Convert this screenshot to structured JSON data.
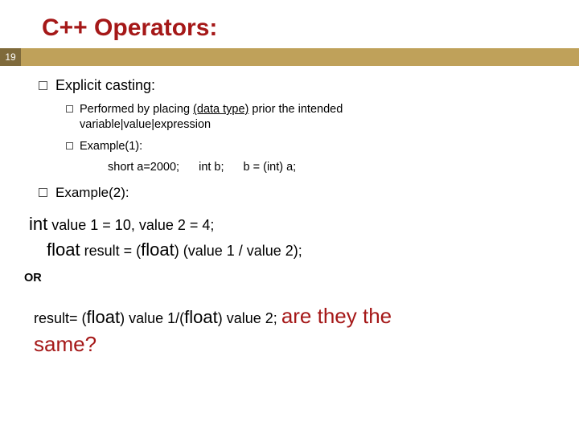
{
  "colors": {
    "heading": "#a51818",
    "accent_bar": "#bfa15a",
    "pagenum_bg": "#7f6a3b",
    "pagenum_fg": "#ffffff",
    "body_text": "#000000",
    "question": "#a51818"
  },
  "title": "C++ Operators:",
  "page_number": "19",
  "section": {
    "heading": "Explicit casting:",
    "sub1_pre": "Performed by placing ",
    "sub1_mid": "(data type)",
    "sub1_post": " prior the intended ",
    "sub1_line2": "variable|value|expression",
    "sub2": "Example(1):",
    "code_parts": {
      "p1": "short a=2000;",
      "p2": "int b;",
      "p3": "b = (int) a;"
    }
  },
  "example2": {
    "label": "Example(2):",
    "line1_kw": "int",
    "line1_rest": " value 1 = 10, value 2 = 4;",
    "line2_kw1": "float",
    "line2_mid": " result = (",
    "line2_kw2": "float",
    "line2_tail": ") (value 1 / value 2);",
    "or": "OR",
    "final_pre": "result= (",
    "final_kw1": "float",
    "final_mid": ") value 1/(",
    "final_kw2": "float",
    "final_post": ") value 2;  ",
    "question1": "are they the",
    "question2": "same?"
  }
}
